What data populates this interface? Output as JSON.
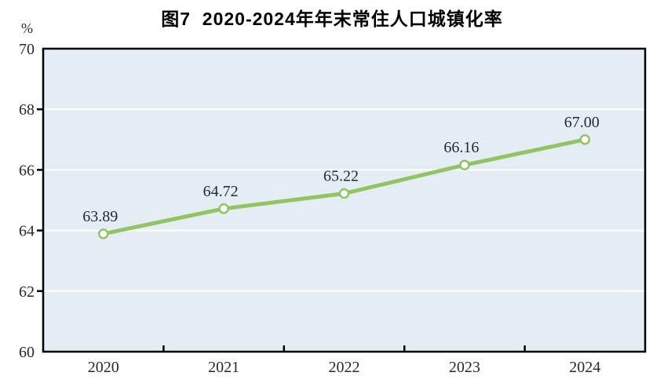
{
  "figure": {
    "title": "图7  2020-2024年年末常住人口城镇化率",
    "unit_label": "%"
  },
  "chart_data": {
    "type": "line",
    "title": "图7  2020-2024年年末常住人口城镇化率",
    "unit_label": "%",
    "categories": [
      "2020",
      "2021",
      "2022",
      "2023",
      "2024"
    ],
    "values": [
      63.89,
      64.72,
      65.22,
      66.16,
      67.0
    ],
    "data_labels": [
      "63.89",
      "64.72",
      "65.22",
      "66.16",
      "67.00"
    ],
    "xlabel": "",
    "ylabel": "%",
    "ylim": [
      60,
      70
    ],
    "y_ticks": [
      70,
      68,
      66,
      64,
      62,
      60
    ],
    "grid": true,
    "legend": "none",
    "colors": {
      "line": "#92c464",
      "marker_fill": "#ffffff",
      "plot_background": "#e4edf3",
      "gridline": "#ffffff",
      "axis_border": "#000000",
      "text": "#222a35",
      "title_text": "#000000"
    }
  }
}
